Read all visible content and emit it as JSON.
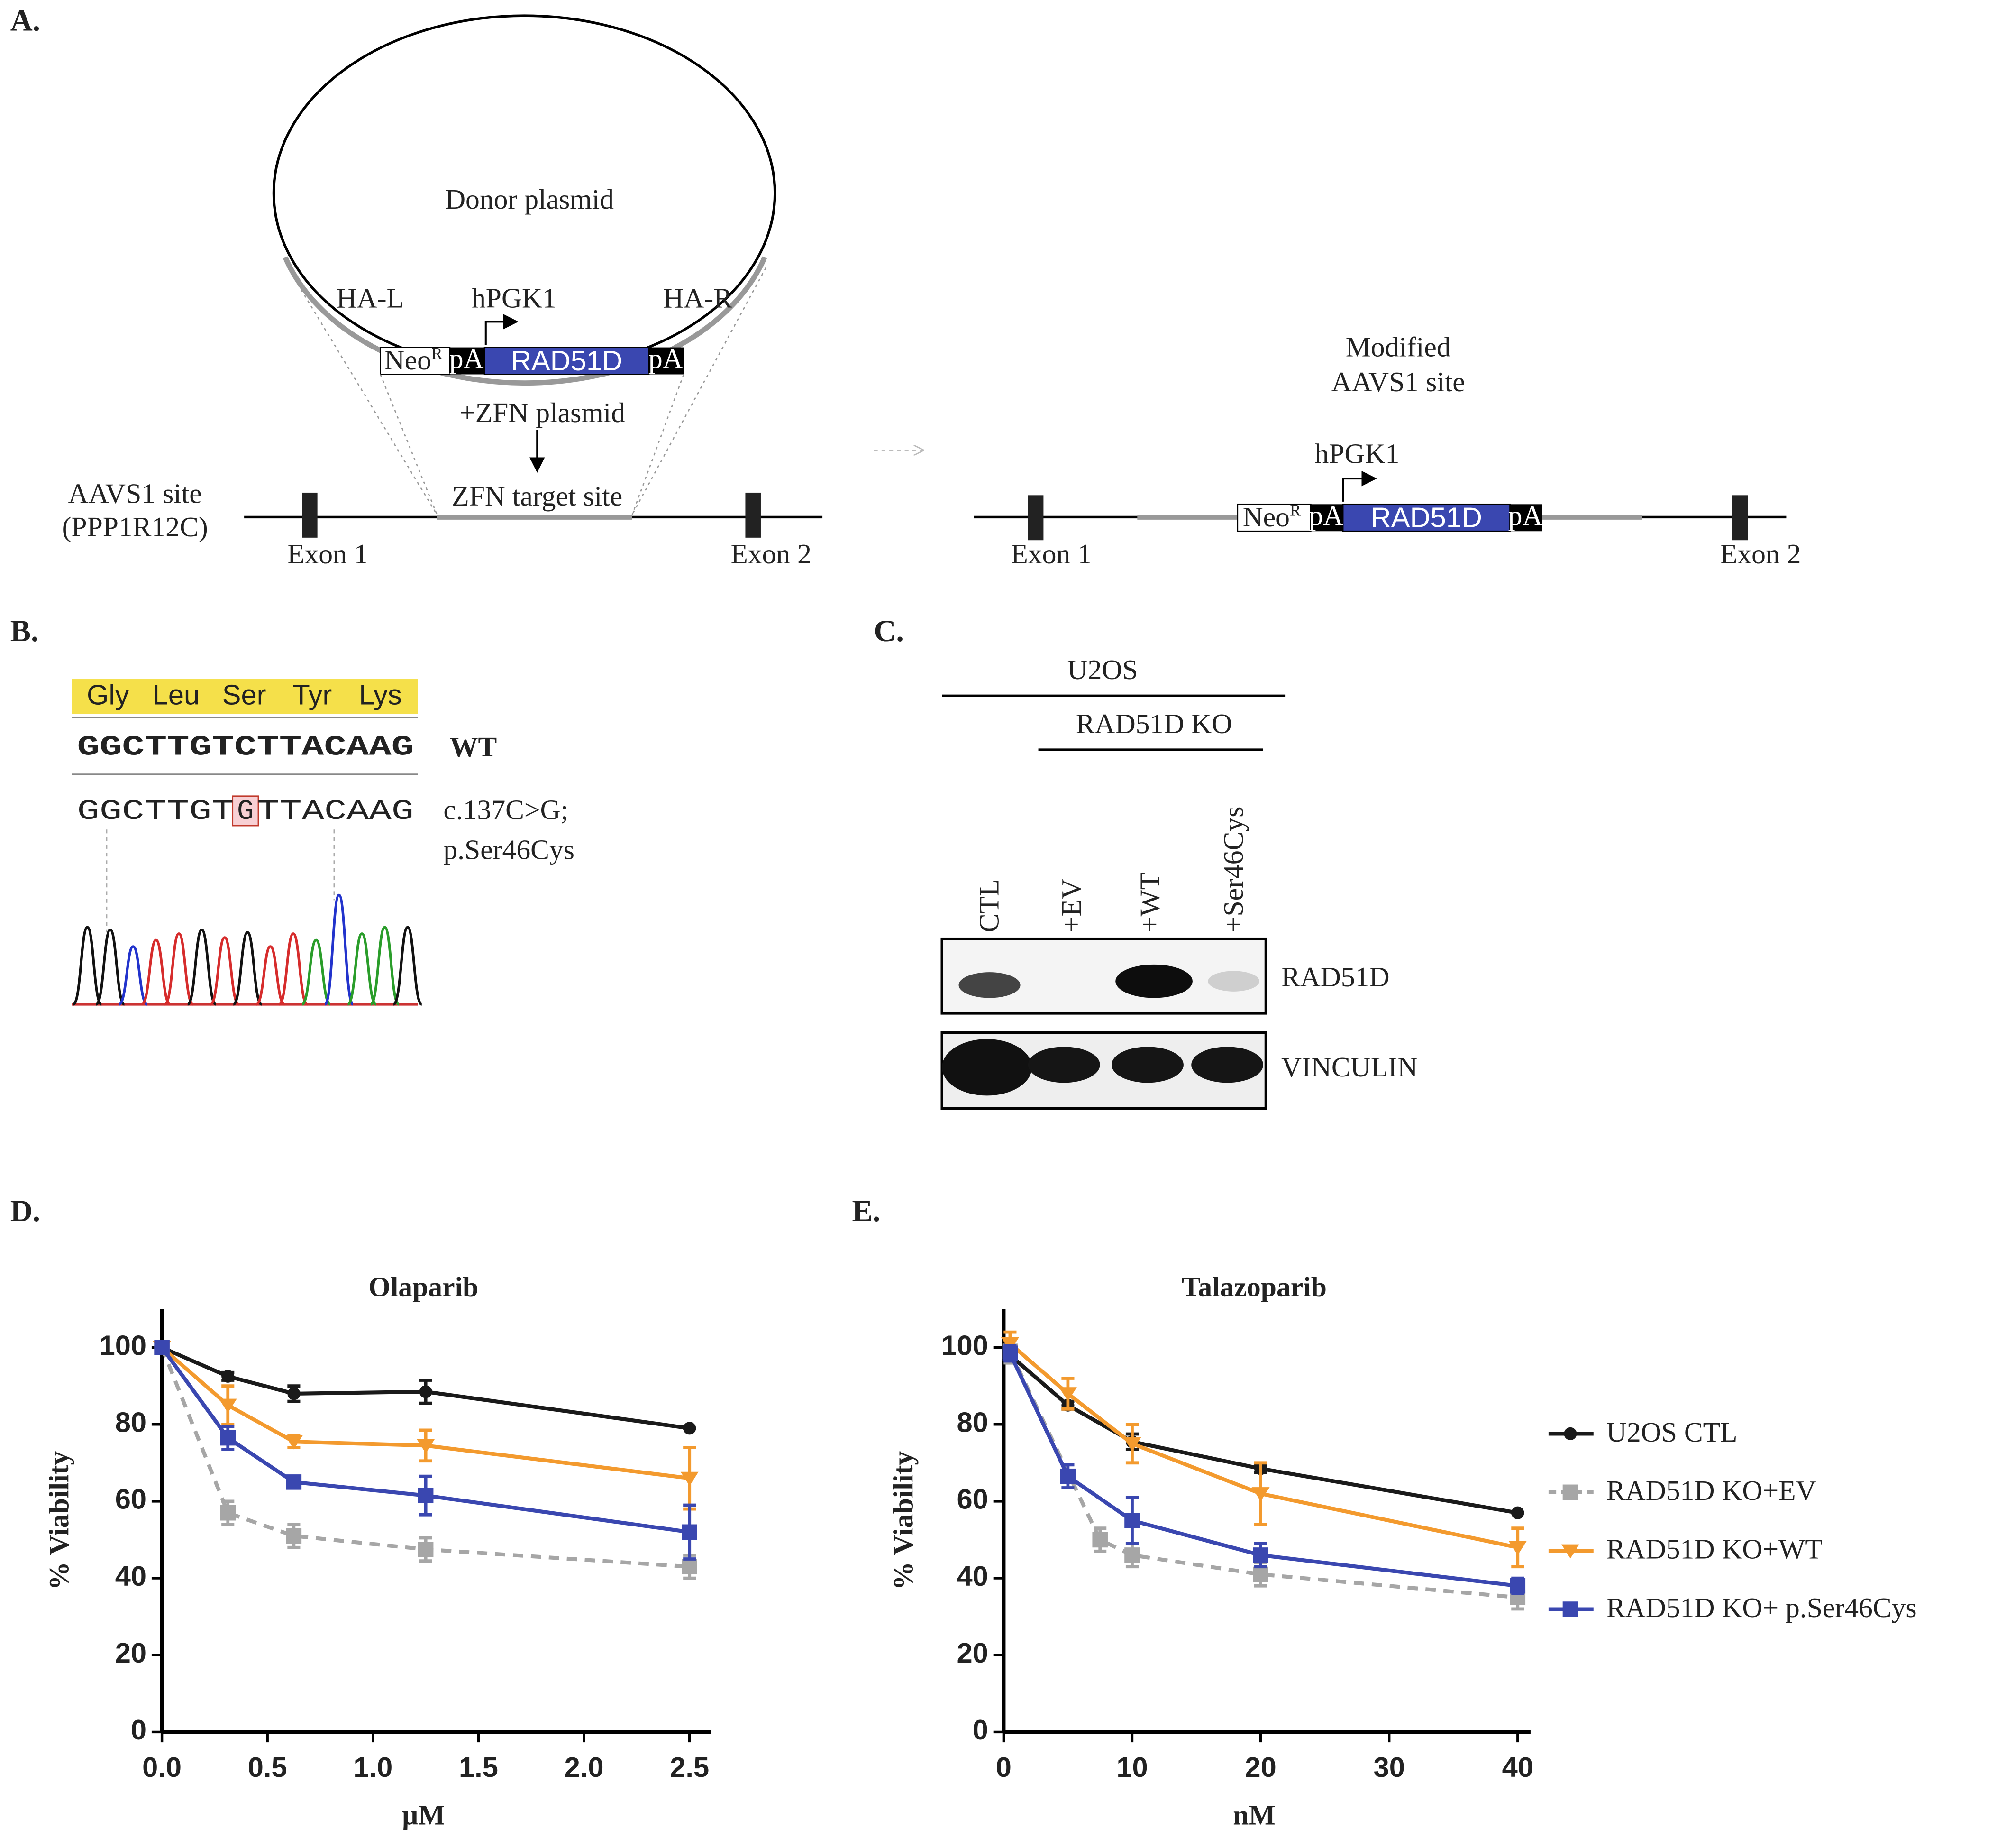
{
  "panel_a": {
    "label": "A.",
    "donor_plasmid": "Donor plasmid",
    "ha_left": "HA-L",
    "promoter": "hPGK1",
    "ha_right": "HA-R",
    "cassette": {
      "neo": "Neo",
      "neo_sup": "R",
      "pa_1": "pA",
      "gene": "RAD51D",
      "pa_2": "pA"
    },
    "zfn_plasmid": "+ZFN plasmid",
    "locus": {
      "name": "AAVS1 site",
      "gene": "(PPP1R12C)",
      "target": "ZFN target site",
      "exon_1": "Exon 1",
      "exon_2": "Exon 2"
    },
    "modified": {
      "title_1": "Modified",
      "title_2": "AAVS1 site",
      "promoter": "hPGK1",
      "cassette": {
        "neo": "Neo",
        "neo_sup": "R",
        "pa_1": "pA",
        "gene": "RAD51D",
        "pa_2": "pA"
      },
      "exon_1": "Exon 1",
      "exon_2": "Exon 2"
    }
  },
  "panel_b": {
    "label": "B.",
    "amino_acids": [
      "Gly",
      "Leu",
      "Ser",
      "Tyr",
      "Lys"
    ],
    "wt_sequence": "GGCTTGTCTTACAAG",
    "wt_label": "WT",
    "mutant_sequence": [
      "GGCTTGT",
      "G",
      "TTACAAG"
    ],
    "mutation": "c.137C>G;",
    "protein_change": "p.Ser46Cys"
  },
  "panel_c": {
    "label": "C.",
    "cell_line": "U2OS",
    "group": "RAD51D KO",
    "lanes": [
      "CTL",
      "+EV",
      "+WT",
      "+Ser46Cys"
    ],
    "blots": [
      "RAD51D",
      "VINCULIN"
    ]
  },
  "chart_data": [
    {
      "type": "line",
      "panel_label": "D.",
      "title": "Olaparib",
      "xlabel": "µM",
      "ylabel": "% Viability",
      "xlim": [
        0,
        2.6
      ],
      "ylim": [
        0,
        110
      ],
      "xticks": [
        {
          "value": 0,
          "label": "0.0"
        },
        0.5,
        {
          "value": 1,
          "label": "1.0"
        },
        1.5,
        {
          "value": 2,
          "label": "2.0"
        },
        2.5
      ],
      "yticks": [
        0,
        20,
        40,
        60,
        80,
        100
      ],
      "series": [
        {
          "color": "#1a1a1a",
          "marker": "circle",
          "dashed": false,
          "x": [
            0,
            0.3125,
            0.625,
            1.25,
            2.5
          ],
          "values": [
            100,
            92.5,
            88,
            88.5,
            79
          ],
          "errors": [
            0,
            1,
            2,
            3,
            0
          ]
        },
        {
          "color": "#a6a6a6",
          "marker": "square",
          "dashed": true,
          "x": [
            0,
            0.3125,
            0.625,
            1.25,
            2.5
          ],
          "values": [
            100,
            57,
            51,
            47.5,
            43
          ],
          "errors": [
            0,
            3,
            3,
            3,
            3
          ]
        },
        {
          "color": "#f39a2e",
          "marker": "triangle",
          "dashed": false,
          "x": [
            0,
            0.3125,
            0.625,
            1.25,
            2.5
          ],
          "values": [
            100,
            85,
            75.5,
            74.5,
            66
          ],
          "errors": [
            0,
            5,
            1.5,
            4,
            8
          ]
        },
        {
          "color": "#3a47b0",
          "marker": "square",
          "dashed": false,
          "x": [
            0,
            0.3125,
            0.625,
            1.25,
            2.5
          ],
          "values": [
            100,
            76.5,
            65,
            61.5,
            52
          ],
          "errors": [
            0,
            3,
            1,
            5,
            7
          ]
        }
      ]
    },
    {
      "type": "line",
      "panel_label": "E.",
      "title": "Talazoparib",
      "xlabel": "nM",
      "ylabel": "% Viability",
      "xlim": [
        0,
        41
      ],
      "ylim": [
        0,
        110
      ],
      "xticks": [
        0,
        10,
        20,
        30,
        40
      ],
      "yticks": [
        0,
        20,
        40,
        60,
        80,
        100
      ],
      "legend": "right",
      "series": [
        {
          "name": "U2OS CTL",
          "color": "#1a1a1a",
          "marker": "circle",
          "dashed": false,
          "x": [
            0.5,
            5,
            10,
            20,
            40
          ],
          "values": [
            98,
            85,
            75.5,
            68.5,
            57
          ],
          "errors": [
            2,
            1,
            2,
            1,
            0
          ]
        },
        {
          "name": "RAD51D KO+EV",
          "color": "#a6a6a6",
          "marker": "square",
          "dashed": true,
          "x": [
            0.5,
            7.5,
            10,
            20,
            40
          ],
          "values": [
            99,
            50,
            46,
            41,
            35
          ],
          "errors": [
            3,
            3,
            3,
            3,
            3
          ]
        },
        {
          "name": "RAD51D KO+WT",
          "color": "#f39a2e",
          "marker": "triangle",
          "dashed": false,
          "x": [
            0.5,
            5,
            10,
            20,
            40
          ],
          "values": [
            101,
            88,
            75,
            62,
            48
          ],
          "errors": [
            3,
            4,
            5,
            8,
            5
          ]
        },
        {
          "name": "RAD51D KO+ p.Ser46Cys",
          "color": "#3a47b0",
          "marker": "square",
          "dashed": false,
          "x": [
            0.5,
            5,
            10,
            20,
            40
          ],
          "values": [
            98.5,
            66.5,
            55,
            46,
            38
          ],
          "errors": [
            2,
            3,
            6,
            3,
            2
          ]
        }
      ]
    }
  ]
}
